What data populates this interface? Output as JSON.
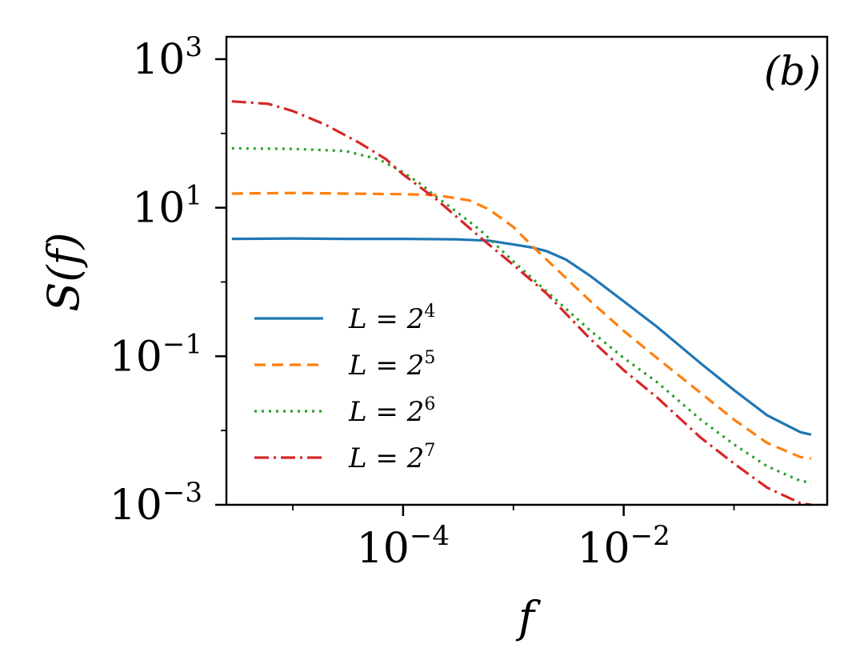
{
  "chart_data": {
    "type": "line",
    "panel_label": "(b)",
    "xlabel": "f",
    "ylabel": "S(f)",
    "xscale": "log",
    "yscale": "log",
    "xlim": [
      2.5e-06,
      0.7
    ],
    "ylim": [
      0.001,
      2000
    ],
    "grid": false,
    "legend_placement": "lower-left",
    "x_ticks": [
      {
        "value": 0.0001,
        "base": "10",
        "exponent": "−4"
      },
      {
        "value": 0.01,
        "base": "10",
        "exponent": "−2"
      }
    ],
    "y_ticks": [
      {
        "value": 0.001,
        "base": "10",
        "exponent": "−3"
      },
      {
        "value": 0.1,
        "base": "10",
        "exponent": "−1"
      },
      {
        "value": 10,
        "base": "10",
        "exponent": "1"
      },
      {
        "value": 1000,
        "base": "10",
        "exponent": "3"
      }
    ],
    "series": [
      {
        "name": "L = 2^4",
        "label_base": "L = 2",
        "label_exp": "4",
        "color": "#1f77b4",
        "dash": "",
        "points": [
          [
            2.8e-06,
            3.8
          ],
          [
            1e-05,
            3.85
          ],
          [
            3e-05,
            3.8
          ],
          [
            0.0001,
            3.8
          ],
          [
            0.0003,
            3.75
          ],
          [
            0.0006,
            3.6
          ],
          [
            0.001,
            3.2
          ],
          [
            0.0015,
            2.9
          ],
          [
            0.002,
            2.6
          ],
          [
            0.003,
            2.0
          ],
          [
            0.005,
            1.2
          ],
          [
            0.01,
            0.55
          ],
          [
            0.02,
            0.25
          ],
          [
            0.05,
            0.08
          ],
          [
            0.1,
            0.035
          ],
          [
            0.2,
            0.016
          ],
          [
            0.4,
            0.0095
          ],
          [
            0.5,
            0.0088
          ]
        ]
      },
      {
        "name": "L = 2^5",
        "label_base": "L = 2",
        "label_exp": "5",
        "color": "#ff7f0e",
        "dash": "14,8",
        "points": [
          [
            2.8e-06,
            15.5
          ],
          [
            1e-05,
            15.8
          ],
          [
            3e-05,
            15.5
          ],
          [
            0.0001,
            15.2
          ],
          [
            0.0002,
            14.8
          ],
          [
            0.0004,
            12.5
          ],
          [
            0.0006,
            9.5
          ],
          [
            0.001,
            5.5
          ],
          [
            0.0015,
            3.0
          ],
          [
            0.002,
            2.0
          ],
          [
            0.005,
            0.55
          ],
          [
            0.01,
            0.22
          ],
          [
            0.02,
            0.095
          ],
          [
            0.05,
            0.032
          ],
          [
            0.1,
            0.014
          ],
          [
            0.2,
            0.0068
          ],
          [
            0.4,
            0.0044
          ],
          [
            0.5,
            0.0042
          ]
        ]
      },
      {
        "name": "L = 2^6",
        "label_base": "L = 2",
        "label_exp": "6",
        "color": "#2ca02c",
        "dash": "3,6",
        "points": [
          [
            2.8e-06,
            63
          ],
          [
            1e-05,
            62
          ],
          [
            3e-05,
            58
          ],
          [
            6e-05,
            45
          ],
          [
            0.0001,
            30
          ],
          [
            0.00015,
            20
          ],
          [
            0.0002,
            14
          ],
          [
            0.0003,
            9
          ],
          [
            0.0005,
            5
          ],
          [
            0.001,
            1.9
          ],
          [
            0.002,
            0.75
          ],
          [
            0.005,
            0.22
          ],
          [
            0.01,
            0.095
          ],
          [
            0.02,
            0.045
          ],
          [
            0.05,
            0.014
          ],
          [
            0.1,
            0.0065
          ],
          [
            0.2,
            0.0033
          ],
          [
            0.4,
            0.0021
          ],
          [
            0.5,
            0.002
          ]
        ]
      },
      {
        "name": "L = 2^7",
        "label_base": "L = 2",
        "label_exp": "7",
        "color": "#d62728",
        "dash": "18,6,3,6",
        "points": [
          [
            2.8e-06,
            270
          ],
          [
            6e-06,
            250
          ],
          [
            1e-05,
            200
          ],
          [
            2e-05,
            130
          ],
          [
            4e-05,
            75
          ],
          [
            7e-05,
            45
          ],
          [
            0.0001,
            28
          ],
          [
            0.0002,
            13
          ],
          [
            0.0005,
            4
          ],
          [
            0.001,
            1.7
          ],
          [
            0.002,
            0.7
          ],
          [
            0.005,
            0.17
          ],
          [
            0.01,
            0.065
          ],
          [
            0.02,
            0.028
          ],
          [
            0.05,
            0.008
          ],
          [
            0.1,
            0.0036
          ],
          [
            0.2,
            0.0017
          ],
          [
            0.4,
            0.00105
          ],
          [
            0.5,
            0.001
          ]
        ]
      }
    ]
  }
}
